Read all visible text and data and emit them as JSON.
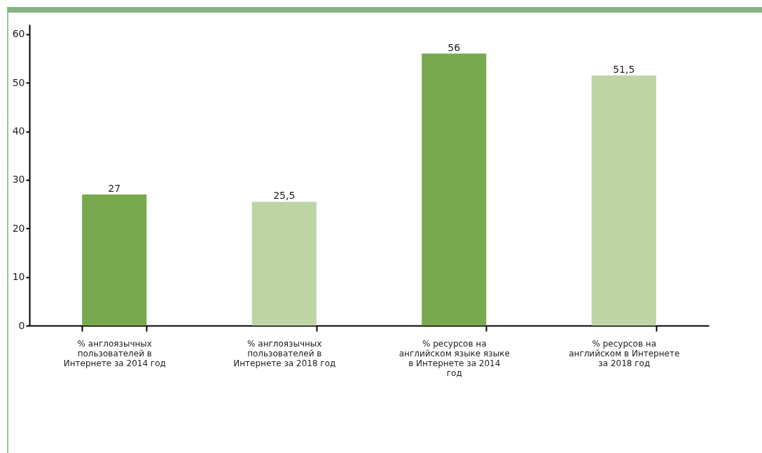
{
  "chart_data": {
    "type": "bar",
    "categories": [
      "% англоязычных пользователей в Интернете за 2014 год",
      "% англоязычных пользователей в Интернете за 2018 год",
      "% ресурсов на английском языке языке в Интернете за 2014 год",
      "% ресурсов на английском в Интернете за 2018 год"
    ],
    "values": [
      27,
      25.5,
      56,
      51.5
    ],
    "colors": [
      "#78a94f",
      "#bdd5a5",
      "#78a94f",
      "#bdd5a5"
    ],
    "value_labels": [
      "27",
      "25,5",
      "56",
      "51,5"
    ],
    "ylim": [
      0,
      62
    ],
    "yticks": [
      0,
      10,
      20,
      30,
      40,
      50,
      60
    ],
    "grid": false
  }
}
